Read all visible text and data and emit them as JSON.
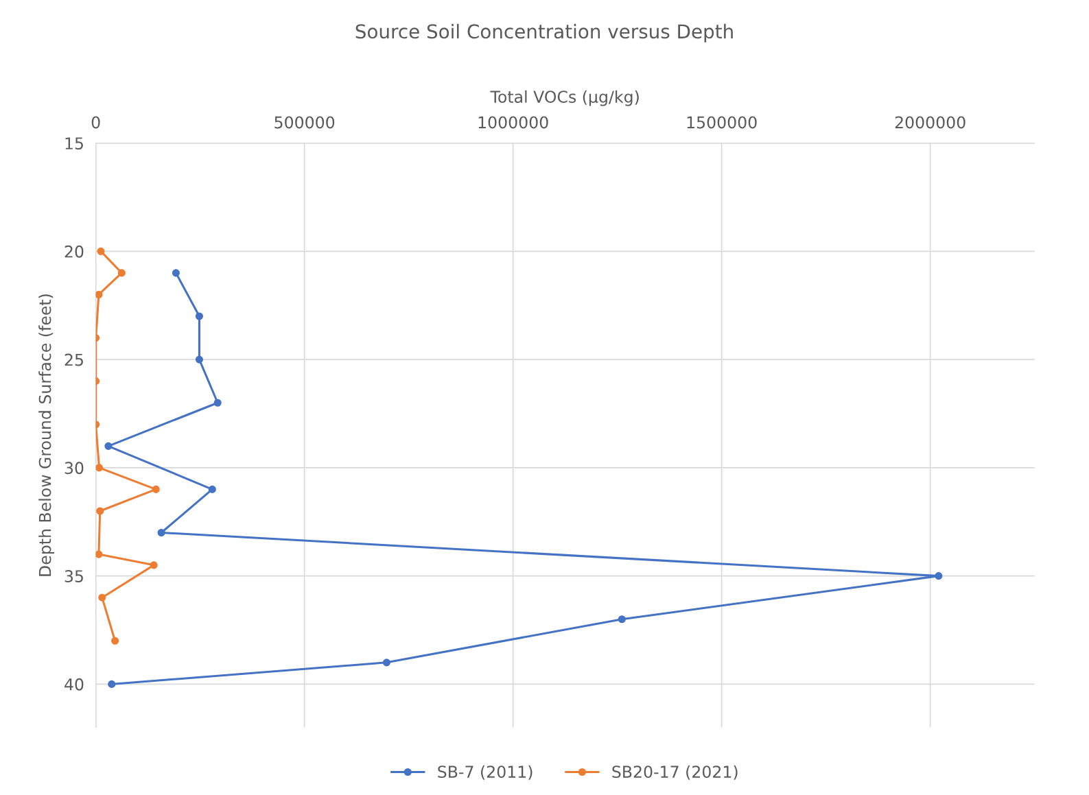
{
  "chart_data": {
    "type": "line",
    "title": "Source Soil Concentration versus Depth",
    "xlabel": "Total VOCs (µg/kg)",
    "ylabel": "Depth Below Ground Surface (feet)",
    "xlim": [
      0,
      2250000
    ],
    "xticks": [
      0,
      500000,
      1000000,
      1500000,
      2000000
    ],
    "ylim": [
      42,
      15
    ],
    "yticks": [
      15,
      20,
      25,
      30,
      35,
      40
    ],
    "grid": true,
    "legend": "bottom",
    "marker": "circle",
    "line_style": "solid",
    "series": [
      {
        "name": "SB-7 (2011)",
        "color": "#4472c4",
        "x": [
          192000,
          248000,
          248000,
          292000,
          30000,
          279000,
          157000,
          2020000,
          1261000,
          697000,
          38000
        ],
        "values": [
          21,
          23,
          25,
          27,
          29,
          31,
          33,
          35,
          37,
          39,
          40
        ]
      },
      {
        "name": "SB20-17 (2021)",
        "color": "#ed7d31",
        "x": [
          12000,
          62000,
          7000,
          0,
          0,
          0,
          8000,
          144000,
          10000,
          7000,
          139000,
          15000,
          46000
        ],
        "values": [
          20,
          21,
          22,
          24,
          26,
          28,
          30,
          31,
          32,
          34,
          34.5,
          36,
          38
        ]
      }
    ]
  }
}
